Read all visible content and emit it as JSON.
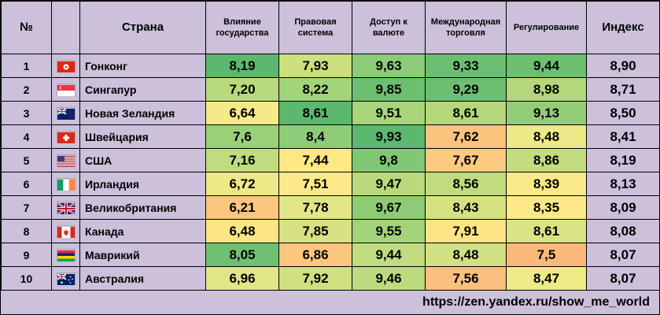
{
  "headers": {
    "num": "№",
    "country": "Страна",
    "gov": [
      "Влияние",
      "государства"
    ],
    "legal": [
      "Правовая",
      "система"
    ],
    "currency": [
      "Доступ к",
      "валюте"
    ],
    "trade": [
      "Международная",
      "торговля"
    ],
    "regulation": "Регулирование",
    "index": "Индекс"
  },
  "rows": [
    {
      "num": "1",
      "flag": "hong-kong-flag-icon",
      "country": "Гонконг",
      "gov": "8,19",
      "legal": "7,93",
      "currency": "9,63",
      "trade": "9,33",
      "regulation": "9,44",
      "index": "8,90",
      "colors": {
        "gov": "#5cb86e",
        "legal": "#cde07e",
        "currency": "#8ccc78",
        "trade": "#6cbf70",
        "regulation": "#6dbf70",
        "index": "#ccc0da"
      }
    },
    {
      "num": "2",
      "flag": "singapore-flag-icon",
      "country": "Сингапур",
      "gov": "7,20",
      "legal": "8,22",
      "currency": "9,85",
      "trade": "9,29",
      "regulation": "8,98",
      "index": "8,71",
      "colors": {
        "gov": "#b8da7c",
        "legal": "#a2d47a",
        "currency": "#6cbf70",
        "trade": "#6cbf70",
        "regulation": "#b3d77a",
        "index": "#ccc0da"
      }
    },
    {
      "num": "3",
      "flag": "new-zealand-flag-icon",
      "country": "Новая Зеландия",
      "gov": "6,64",
      "legal": "8,61",
      "currency": "9,51",
      "trade": "8,61",
      "regulation": "9,13",
      "index": "8,50",
      "colors": {
        "gov": "#f6e98a",
        "legal": "#5cb86e",
        "currency": "#a8d57a",
        "trade": "#b3d77a",
        "regulation": "#93cd78",
        "index": "#ccc0da"
      }
    },
    {
      "num": "4",
      "flag": "switzerland-flag-icon",
      "country": "Швейцария",
      "gov": "7,6",
      "legal": "8,4",
      "currency": "9,93",
      "trade": "7,62",
      "regulation": "8,48",
      "index": "8,41",
      "colors": {
        "gov": "#9ad178",
        "legal": "#8fcc77",
        "currency": "#5cb86e",
        "trade": "#fbc47e",
        "regulation": "#ecea86",
        "index": "#ccc0da"
      }
    },
    {
      "num": "5",
      "flag": "usa-flag-icon",
      "country": "США",
      "gov": "7,16",
      "legal": "7,44",
      "currency": "9,8",
      "trade": "7,67",
      "regulation": "8,86",
      "index": "8,19",
      "colors": {
        "gov": "#c0dc7e",
        "legal": "#fde885",
        "currency": "#80c874",
        "trade": "#fcca80",
        "regulation": "#c3dc7e",
        "index": "#ccc0da"
      }
    },
    {
      "num": "6",
      "flag": "ireland-flag-icon",
      "country": "Ирландия",
      "gov": "6,72",
      "legal": "7,51",
      "currency": "9,47",
      "trade": "8,56",
      "regulation": "8,39",
      "index": "8,13",
      "colors": {
        "gov": "#eee888",
        "legal": "#fce98a",
        "currency": "#b9d97c",
        "trade": "#c0dc7e",
        "regulation": "#fae988",
        "index": "#ccc0da"
      }
    },
    {
      "num": "7",
      "flag": "uk-flag-icon",
      "country": "Великобритания",
      "gov": "6,21",
      "legal": "7,78",
      "currency": "9,67",
      "trade": "8,43",
      "regulation": "8,35",
      "index": "8,09",
      "colors": {
        "gov": "#fcc67e",
        "legal": "#e2e686",
        "currency": "#8dcb77",
        "trade": "#d6e282",
        "regulation": "#fde888",
        "index": "#ccc0da"
      }
    },
    {
      "num": "8",
      "flag": "canada-flag-icon",
      "country": "Канада",
      "gov": "6,48",
      "legal": "7,85",
      "currency": "9,55",
      "trade": "7,91",
      "regulation": "8,61",
      "index": "8,08",
      "colors": {
        "gov": "#fce585",
        "legal": "#d7e282",
        "currency": "#a3d37a",
        "trade": "#fde485",
        "regulation": "#dbe484",
        "index": "#ccc0da"
      }
    },
    {
      "num": "9",
      "flag": "mauritius-flag-icon",
      "country": "Маврикий",
      "gov": "8,05",
      "legal": "6,86",
      "currency": "9,44",
      "trade": "8,48",
      "regulation": "7,5",
      "index": "8,07",
      "colors": {
        "gov": "#70c072",
        "legal": "#fbc77e",
        "currency": "#c0dc7e",
        "trade": "#d1e082",
        "regulation": "#fab87b",
        "index": "#ccc0da"
      }
    },
    {
      "num": "10",
      "flag": "australia-flag-icon",
      "country": "Австралия",
      "gov": "6,96",
      "legal": "7,92",
      "currency": "9,46",
      "trade": "7,56",
      "regulation": "8,47",
      "index": "8,07",
      "colors": {
        "gov": "#e2e686",
        "legal": "#d0e080",
        "currency": "#bcdb7e",
        "trade": "#fbc07d",
        "regulation": "#eeea88",
        "index": "#ccc0da"
      }
    }
  ],
  "footer": "https://zen.yandex.ru/show_me_world"
}
